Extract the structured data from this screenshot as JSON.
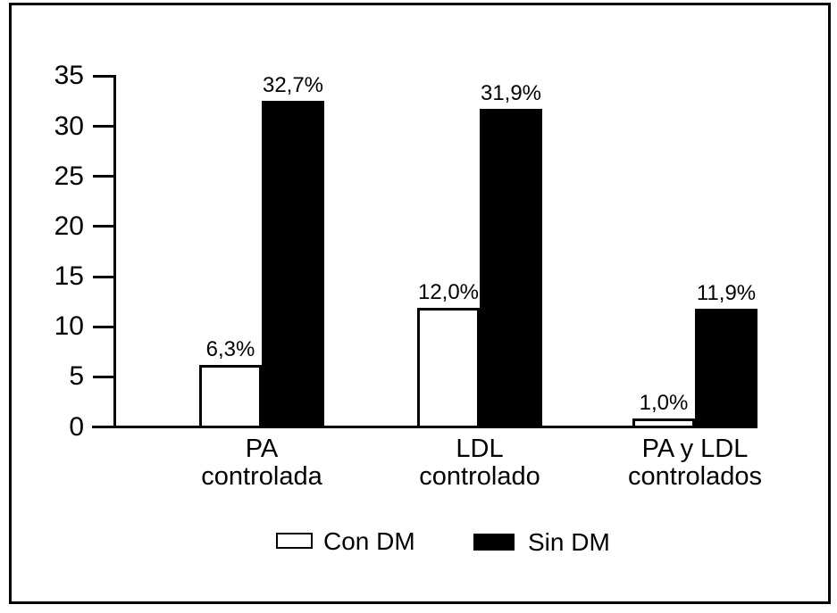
{
  "chart_data": {
    "type": "bar",
    "title": "",
    "xlabel": "",
    "ylabel": "",
    "categories": [
      "PA controlada",
      "LDL controlado",
      "PA y LDL controlados"
    ],
    "category_lines": [
      [
        "PA",
        "controlada"
      ],
      [
        "LDL",
        "controlado"
      ],
      [
        "PA y LDL",
        "controlados"
      ]
    ],
    "series": [
      {
        "name": "Con DM",
        "values": [
          6.3,
          12.0,
          1.0
        ],
        "value_labels": [
          "6,3%",
          "12,0%",
          "1,0%"
        ],
        "fill": "#ffffff",
        "stroke": "#000000"
      },
      {
        "name": "Sin DM",
        "values": [
          32.7,
          31.9,
          11.9
        ],
        "value_labels": [
          "32,7%",
          "31,9%",
          "11,9%"
        ],
        "fill": "#000000",
        "stroke": "#000000"
      }
    ],
    "ylim": [
      0,
      35
    ],
    "y_ticks": [
      0,
      5,
      10,
      15,
      20,
      25,
      30,
      35
    ],
    "grid": false,
    "legend_position": "bottom",
    "legend": [
      {
        "label": "Con DM",
        "fill": "#ffffff",
        "stroke": "#000000"
      },
      {
        "label": "Sin DM",
        "fill": "#000000",
        "stroke": "#000000"
      }
    ],
    "colors": {
      "foreground": "#000000",
      "background": "#ffffff"
    }
  }
}
